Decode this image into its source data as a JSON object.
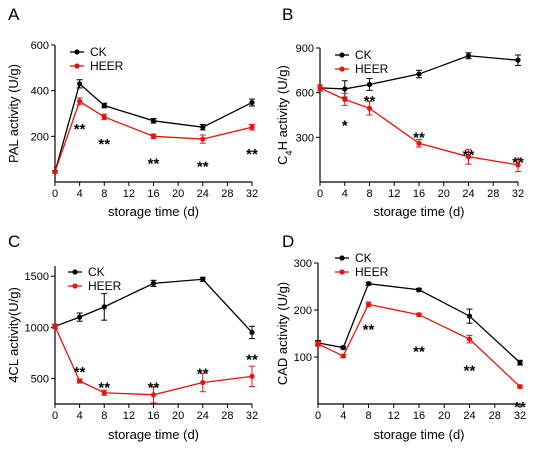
{
  "chart_data": [
    {
      "panel": "A",
      "type": "line",
      "xlabel": "storage time (d)",
      "ylabel": "PAL  activity  (U/g)",
      "ylabel_sub": "",
      "ylabel_tail": "",
      "xlim": [
        0,
        32
      ],
      "ylim": [
        0,
        600
      ],
      "xticks": [
        0,
        4,
        8,
        12,
        16,
        20,
        24,
        28,
        32
      ],
      "yticks": [
        200,
        400,
        600
      ],
      "legend_position": "top-left",
      "x": [
        0,
        4,
        8,
        16,
        24,
        32
      ],
      "series": [
        {
          "name": "CK",
          "color": "#000000",
          "values": [
            45,
            430,
            335,
            268,
            240,
            348
          ],
          "errors": [
            5,
            18,
            10,
            10,
            12,
            15
          ]
        },
        {
          "name": "HEER",
          "color": "#e8140c",
          "values": [
            45,
            353,
            285,
            200,
            188,
            240
          ],
          "errors": [
            5,
            15,
            12,
            10,
            18,
            12
          ]
        }
      ],
      "significance": [
        {
          "x": 4,
          "y": 245,
          "label": "**"
        },
        {
          "x": 8,
          "y": 180,
          "label": "**"
        },
        {
          "x": 16,
          "y": 95,
          "label": "**"
        },
        {
          "x": 24,
          "y": 80,
          "label": "**"
        },
        {
          "x": 32,
          "y": 135,
          "label": "**"
        }
      ]
    },
    {
      "panel": "B",
      "type": "line",
      "xlabel": "storage time (d)",
      "ylabel": "C",
      "ylabel_sub": "4",
      "ylabel_tail": "H  activity  (U/g)",
      "xlim": [
        0,
        32
      ],
      "ylim": [
        0,
        900
      ],
      "xticks": [
        0,
        4,
        8,
        12,
        16,
        20,
        24,
        28,
        32
      ],
      "yticks": [
        300,
        600,
        900
      ],
      "legend_position": "top-left",
      "x": [
        0,
        4,
        8,
        16,
        24,
        32
      ],
      "series": [
        {
          "name": "CK",
          "color": "#000000",
          "values": [
            632,
            625,
            655,
            725,
            848,
            818
          ],
          "errors": [
            20,
            55,
            40,
            25,
            20,
            35
          ]
        },
        {
          "name": "HEER",
          "color": "#e8140c",
          "values": [
            632,
            555,
            495,
            260,
            170,
            115
          ],
          "errors": [
            20,
            40,
            45,
            25,
            50,
            45
          ]
        }
      ],
      "significance": [
        {
          "x": 4,
          "y": 400,
          "label": "*"
        },
        {
          "x": 8,
          "y": 565,
          "label": "**"
        },
        {
          "x": 16,
          "y": 320,
          "label": "**"
        },
        {
          "x": 24,
          "y": 200,
          "label": "**"
        },
        {
          "x": 32,
          "y": 150,
          "label": "**"
        }
      ]
    },
    {
      "panel": "C",
      "type": "line",
      "xlabel": "storage time (d)",
      "ylabel": "4CL  activity(U/g)",
      "ylabel_sub": "",
      "ylabel_tail": "",
      "xlim": [
        0,
        32
      ],
      "ylim": [
        250,
        1600
      ],
      "xticks": [
        0,
        4,
        8,
        12,
        16,
        20,
        24,
        28,
        32
      ],
      "yticks": [
        500,
        1000,
        1500
      ],
      "legend_position": "top-left",
      "x": [
        0,
        4,
        8,
        16,
        24,
        32
      ],
      "series": [
        {
          "name": "CK",
          "color": "#000000",
          "values": [
            1010,
            1100,
            1200,
            1430,
            1470,
            950
          ],
          "errors": [
            20,
            40,
            130,
            30,
            20,
            60
          ]
        },
        {
          "name": "HEER",
          "color": "#e8140c",
          "values": [
            1010,
            475,
            360,
            340,
            460,
            520
          ],
          "errors": [
            20,
            20,
            25,
            80,
            90,
            100
          ]
        }
      ],
      "significance": [
        {
          "x": 4,
          "y": 590,
          "label": "**"
        },
        {
          "x": 8,
          "y": 440,
          "label": "**"
        },
        {
          "x": 16,
          "y": 440,
          "label": "**"
        },
        {
          "x": 24,
          "y": 580,
          "label": "**"
        },
        {
          "x": 32,
          "y": 715,
          "label": "**"
        }
      ]
    },
    {
      "panel": "D",
      "type": "line",
      "xlabel": "storage time  (d)",
      "ylabel": "CAD  activity  (U/g)",
      "ylabel_sub": "",
      "ylabel_tail": "",
      "xlim": [
        0,
        32
      ],
      "ylim": [
        0,
        300
      ],
      "xticks": [
        0,
        4,
        8,
        12,
        16,
        20,
        24,
        28,
        32
      ],
      "yticks": [
        100,
        200,
        300
      ],
      "legend_position": "top-left",
      "x": [
        0,
        4,
        8,
        16,
        24,
        32
      ],
      "series": [
        {
          "name": "CK",
          "color": "#000000",
          "values": [
            130,
            120,
            256,
            243,
            187,
            88
          ],
          "errors": [
            5,
            3,
            3,
            3,
            15,
            5
          ]
        },
        {
          "name": "HEER",
          "color": "#e8140c",
          "values": [
            128,
            102,
            212,
            190,
            138,
            37
          ],
          "errors": [
            5,
            3,
            5,
            3,
            8,
            3
          ]
        }
      ],
      "significance": [
        {
          "x": 8,
          "y": 165,
          "label": "**"
        },
        {
          "x": 16,
          "y": 118,
          "label": "**"
        },
        {
          "x": 24,
          "y": 78,
          "label": "**"
        },
        {
          "x": 32,
          "y": 0,
          "label": "**"
        }
      ]
    }
  ]
}
